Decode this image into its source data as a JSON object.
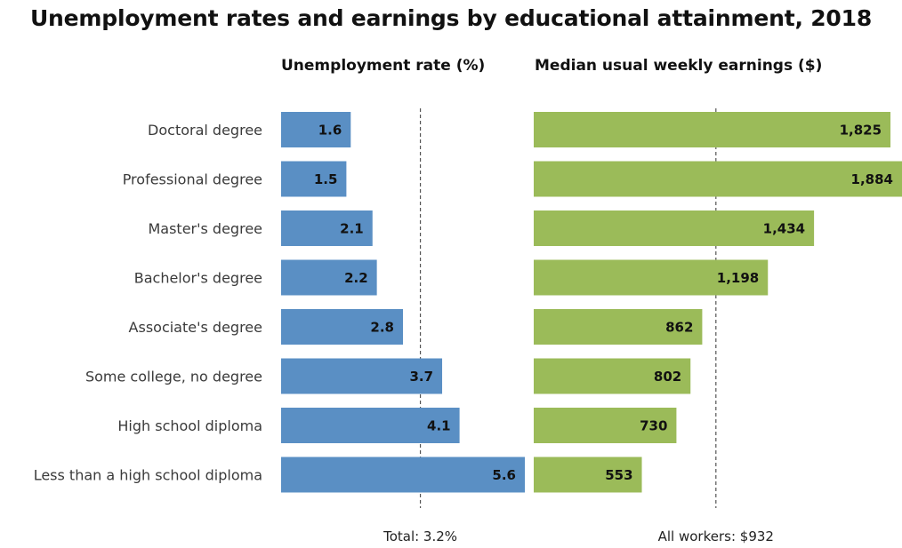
{
  "title": "Unemployment rates and earnings by educational attainment, 2018",
  "chart_data": [
    {
      "type": "bar",
      "orientation": "horizontal",
      "title": "Unemployment rate (%)",
      "categories": [
        "Doctoral degree",
        "Professional degree",
        "Master's degree",
        "Bachelor's degree",
        "Associate's degree",
        "Some college, no degree",
        "High school diploma",
        "Less than a high school diploma"
      ],
      "values": [
        1.6,
        1.5,
        2.1,
        2.2,
        2.8,
        3.7,
        4.1,
        5.6
      ],
      "value_labels": [
        "1.6",
        "1.5",
        "2.1",
        "2.2",
        "2.8",
        "3.7",
        "4.1",
        "5.6"
      ],
      "xlim": [
        0,
        5.6
      ],
      "reference_line": {
        "value": 3.2,
        "label": "Total: 3.2%"
      },
      "color": "#5a8fc4"
    },
    {
      "type": "bar",
      "orientation": "horizontal",
      "title": "Median usual weekly earnings ($)",
      "categories": [
        "Doctoral degree",
        "Professional degree",
        "Master's degree",
        "Bachelor's degree",
        "Associate's degree",
        "Some college, no degree",
        "High school diploma",
        "Less than a high school diploma"
      ],
      "values": [
        1825,
        1884,
        1434,
        1198,
        862,
        802,
        730,
        553
      ],
      "value_labels": [
        "1,825",
        "1,884",
        "1,434",
        "1,198",
        "862",
        "802",
        "730",
        "553"
      ],
      "xlim": [
        0,
        1884
      ],
      "reference_line": {
        "value": 932,
        "label": "All workers: $932"
      },
      "color": "#9bbb59"
    }
  ]
}
